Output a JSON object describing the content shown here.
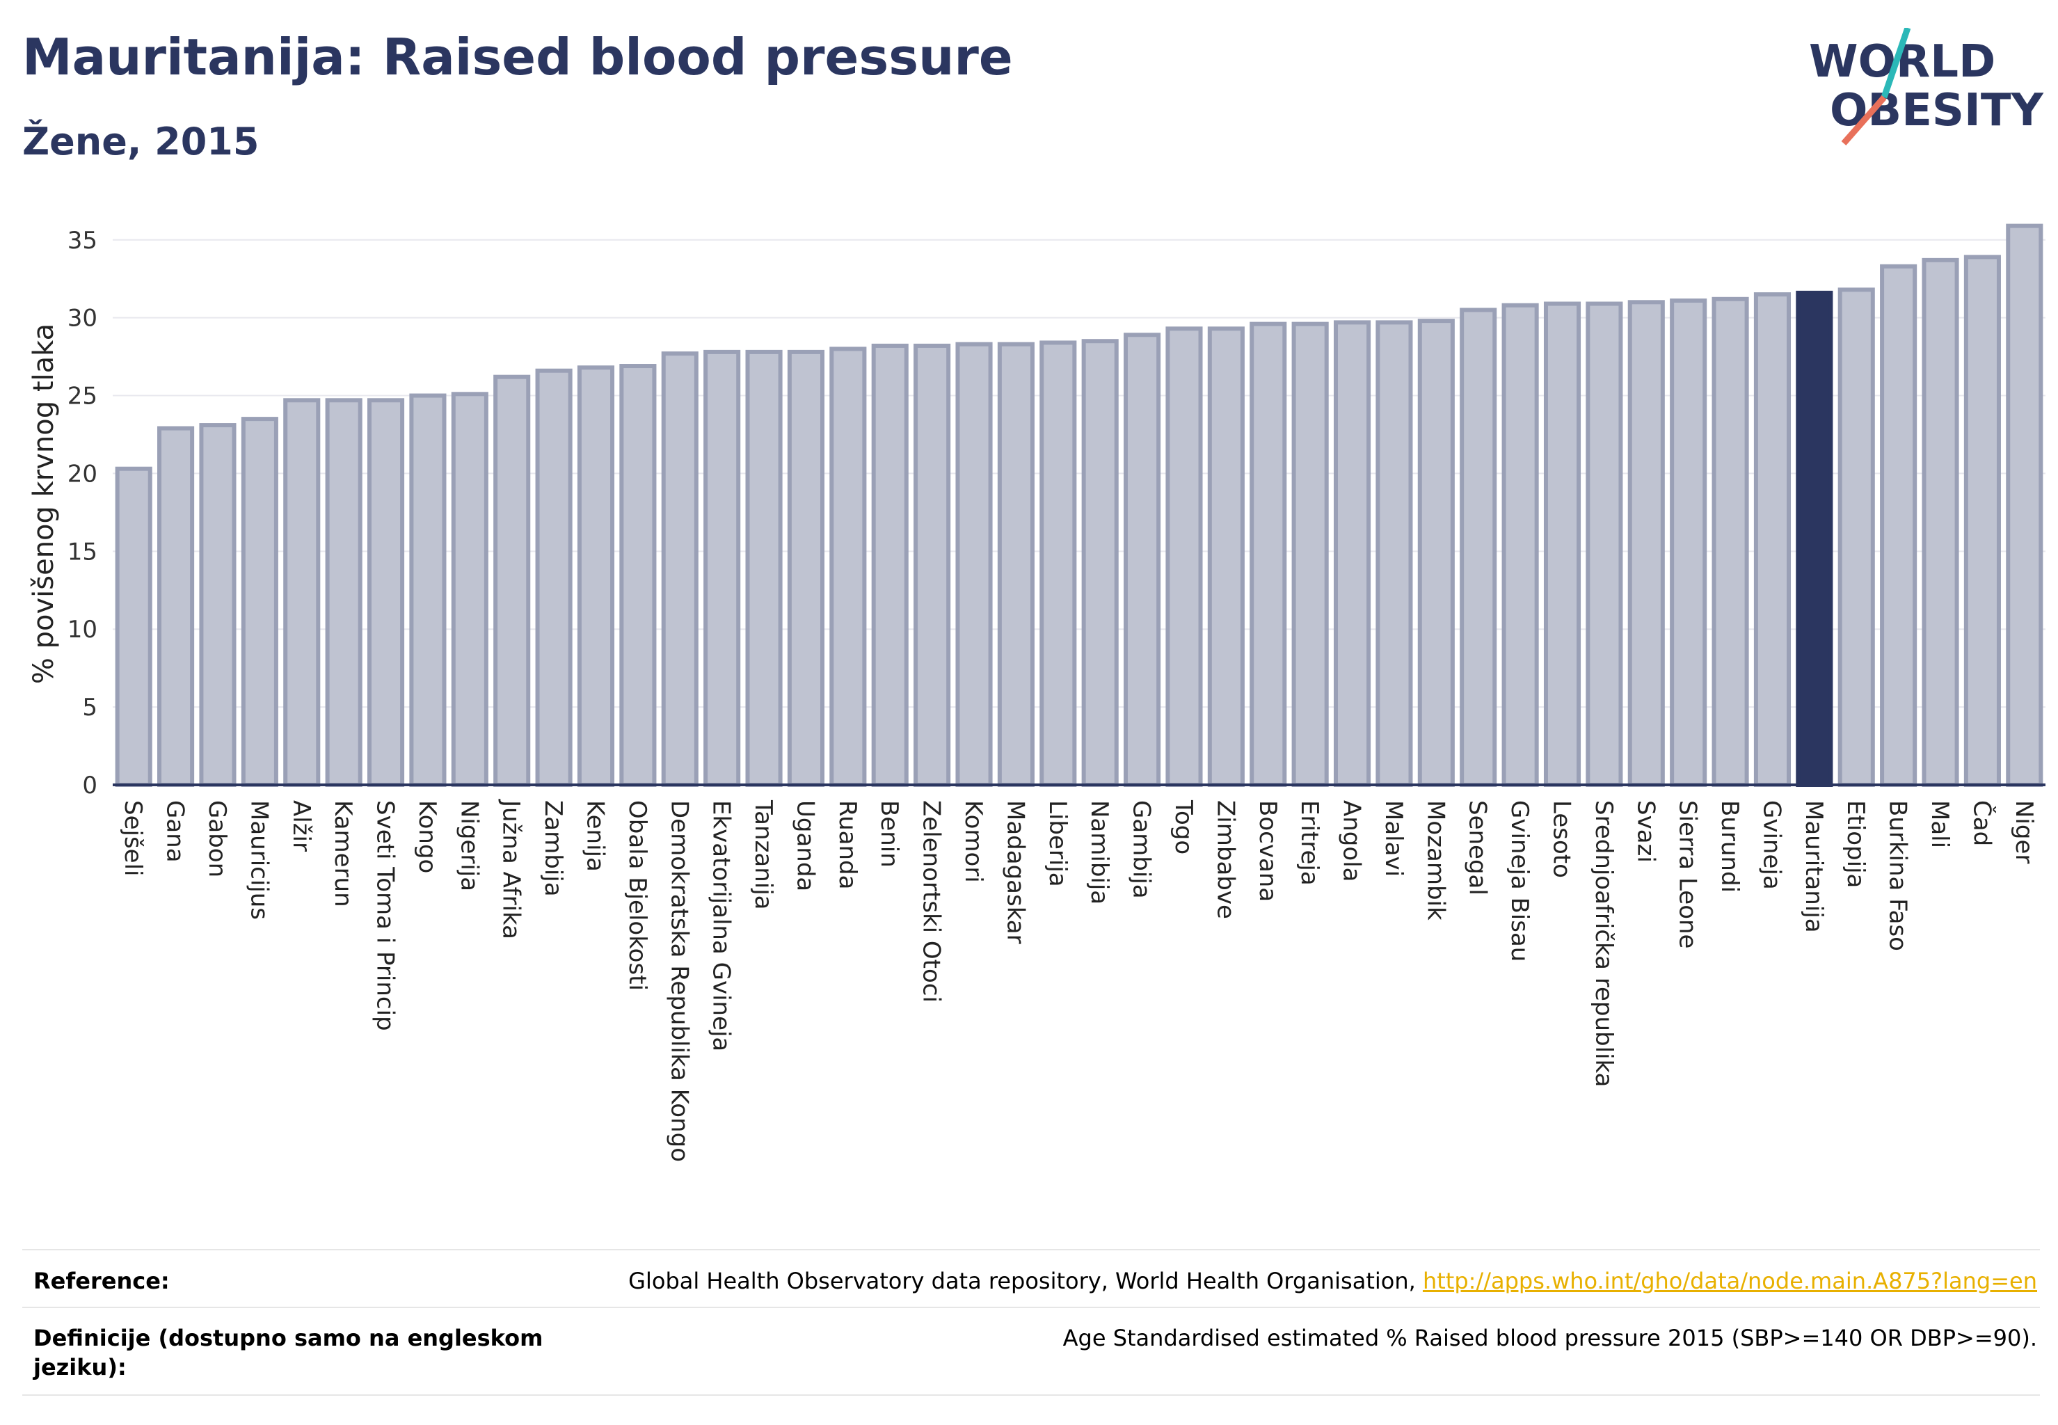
{
  "header": {
    "title": "Mauritanija: Raised blood pressure",
    "subtitle": "Žene, 2015"
  },
  "logo": {
    "line1": "WORLD",
    "line2": "OBESITY"
  },
  "chart_data": {
    "type": "bar",
    "ylabel": "% povišenog krvnog tlaka",
    "xlabel": "",
    "ylim": [
      0,
      37
    ],
    "yticks": [
      0,
      5,
      10,
      15,
      20,
      25,
      30,
      35
    ],
    "highlight": "Mauritanija",
    "colors": {
      "bar": "#bfc3d1",
      "bar_edge": "#9aa0b6",
      "highlight": "#2b3660"
    },
    "categories": [
      "Sejšeli",
      "Gana",
      "Gabon",
      "Mauricijus",
      "Alžir",
      "Kamerun",
      "Sveti Toma i Princip",
      "Kongo",
      "Nigerija",
      "Južna Afrika",
      "Zambija",
      "Kenija",
      "Obala Bjelokosti",
      "Demokratska Republika Kongo",
      "Ekvatorijalna Gvineja",
      "Tanzanija",
      "Uganda",
      "Ruanda",
      "Benin",
      "Zelenortski Otoci",
      "Komori",
      "Madagaskar",
      "Liberija",
      "Namibija",
      "Gambija",
      "Togo",
      "Zimbabve",
      "Bocvana",
      "Eritreja",
      "Angola",
      "Malavi",
      "Mozambik",
      "Senegal",
      "Gvineja Bisau",
      "Lesoto",
      "Srednjoafrička republika",
      "Svazi",
      "Sierra Leone",
      "Burundi",
      "Gvineja",
      "Mauritanija",
      "Etiopija",
      "Burkina Faso",
      "Mali",
      "Čad",
      "Niger"
    ],
    "values": [
      20.3,
      22.9,
      23.1,
      23.5,
      24.7,
      24.7,
      24.7,
      25.0,
      25.1,
      26.2,
      26.6,
      26.8,
      26.9,
      27.7,
      27.8,
      27.8,
      27.8,
      28.0,
      28.2,
      28.2,
      28.3,
      28.3,
      28.4,
      28.5,
      28.9,
      29.3,
      29.3,
      29.6,
      29.6,
      29.7,
      29.7,
      29.8,
      30.5,
      30.8,
      30.9,
      30.9,
      31.0,
      31.1,
      31.2,
      31.5,
      31.6,
      31.8,
      33.3,
      33.7,
      33.9,
      35.9
    ]
  },
  "footer": {
    "reference_label": "Reference:",
    "reference_text": "Global Health Observatory data repository, World Health Organisation, ",
    "reference_link": "http://apps.who.int/gho/data/node.main.A875?lang=en",
    "definition_label_1": "Definicije (dostupno samo na engleskom",
    "definition_label_2": "jeziku):",
    "definition_text": "Age Standardised estimated % Raised blood pressure 2015 (SBP>=140 OR DBP>=90)."
  }
}
